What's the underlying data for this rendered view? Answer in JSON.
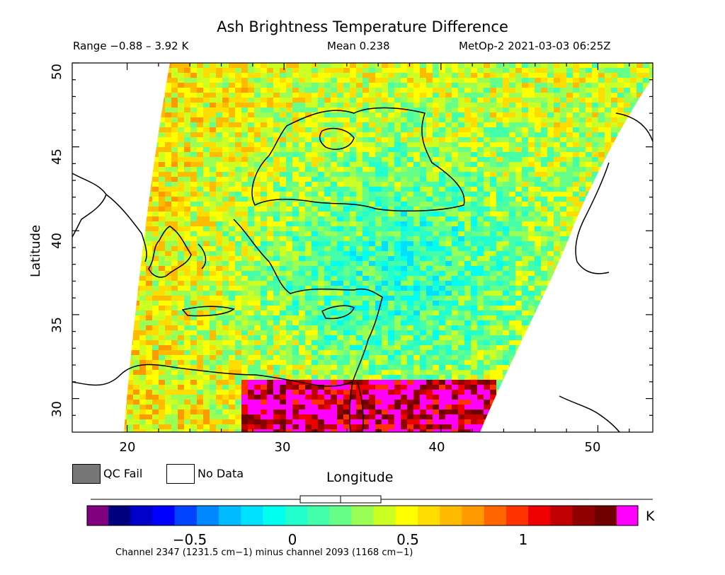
{
  "title": "Ash Brightness Temperature Difference",
  "subtitle": {
    "range": "Range −0.88 – 3.92 K",
    "mean": "Mean 0.238",
    "satellite": "MetOp-2 2021-03-03 06:25Z"
  },
  "axes": {
    "xlabel": "Longitude",
    "ylabel": "Latitude",
    "x_ticks": [
      "20",
      "30",
      "40",
      "50"
    ],
    "y_ticks": [
      "30",
      "35",
      "40",
      "45",
      "50"
    ],
    "x_range": [
      16.5,
      53.5
    ],
    "y_range": [
      28,
      50
    ]
  },
  "legend": {
    "qc_fail": "QC Fail",
    "no_data": "No Data",
    "qc_color": "#777777",
    "no_data_color": "#ffffff"
  },
  "colorbar": {
    "ticks": [
      "−0.5",
      "0",
      "0.5",
      "1"
    ],
    "tick_values": [
      -0.5,
      0,
      0.5,
      1
    ],
    "min": -0.88,
    "max": 1.38,
    "unit": "K",
    "caption": "Channel 2347 (1231.5 cm−1) minus channel 2093 (1168 cm−1)",
    "low_color": "#800080",
    "high_color": "#ff00ff",
    "colors": [
      "#00007f",
      "#0000c8",
      "#0000ff",
      "#0044ff",
      "#0088ff",
      "#00bbff",
      "#00e0ff",
      "#00ffee",
      "#22ffcc",
      "#44ffaa",
      "#66ff88",
      "#99ff55",
      "#ccff22",
      "#ffff00",
      "#ffdd00",
      "#ffbb00",
      "#ff9900",
      "#ff6600",
      "#ff3300",
      "#ee0000",
      "#c00000",
      "#900000",
      "#700000"
    ]
  }
}
